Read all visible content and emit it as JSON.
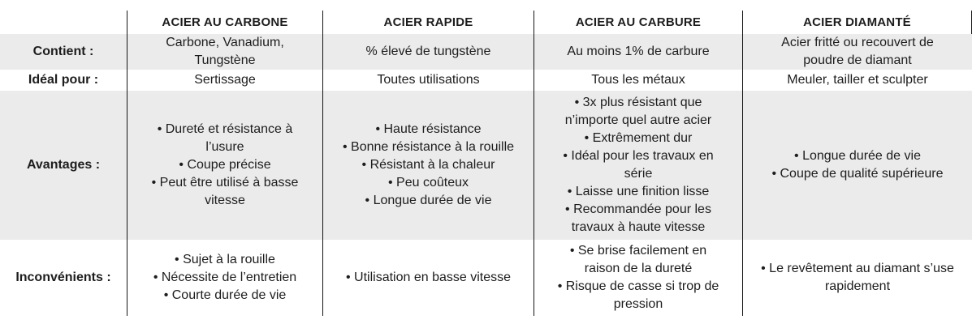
{
  "theme": {
    "stripe": "#ebebeb",
    "divider": "#161616",
    "text": "#1d1d1d",
    "background": "#ffffff"
  },
  "table": {
    "row_labels": [
      "Contient :",
      "Idéal pour :",
      "Avantages :",
      "Inconvénients :"
    ],
    "columns": [
      {
        "header": "ACIER AU CARBONE",
        "contient": "Carbone, Vanadium,\nTungstène",
        "ideal_pour": "Sertissage",
        "avantages": [
          "• Dureté et résistance à\nl’usure",
          "• Coupe précise",
          "• Peut être utilisé à basse\nvitesse"
        ],
        "inconvenients": [
          "• Sujet à la rouille",
          "• Nécessite de l’entretien",
          "• Courte durée de vie"
        ]
      },
      {
        "header": "ACIER RAPIDE",
        "contient": "% élevé de tungstène",
        "ideal_pour": "Toutes utilisations",
        "avantages": [
          "• Haute résistance",
          "• Bonne résistance à la rouille",
          "• Résistant à la chaleur",
          "• Peu coûteux",
          "• Longue durée de vie"
        ],
        "inconvenients": [
          "• Utilisation en basse vitesse"
        ]
      },
      {
        "header": "ACIER AU CARBURE",
        "contient": "Au moins 1% de carbure",
        "ideal_pour": "Tous les métaux",
        "avantages": [
          "• 3x plus résistant que\nn’importe quel autre acier",
          "• Extrêmement dur",
          "• Idéal pour les travaux en\nsérie",
          "• Laisse une finition lisse",
          "• Recommandée pour les\ntravaux à haute vitesse"
        ],
        "inconvenients": [
          "• Se brise facilement en\nraison de la dureté",
          "• Risque de casse si trop de\npression"
        ]
      },
      {
        "header": "ACIER DIAMANTÉ",
        "contient": "Acier fritté ou recouvert de\npoudre de diamant",
        "ideal_pour": "Meuler, tailler et sculpter",
        "avantages": [
          "• Longue durée de vie",
          "• Coupe de qualité supérieure"
        ],
        "inconvenients": [
          "• Le revêtement au diamant s’use\nrapidement"
        ]
      }
    ]
  }
}
